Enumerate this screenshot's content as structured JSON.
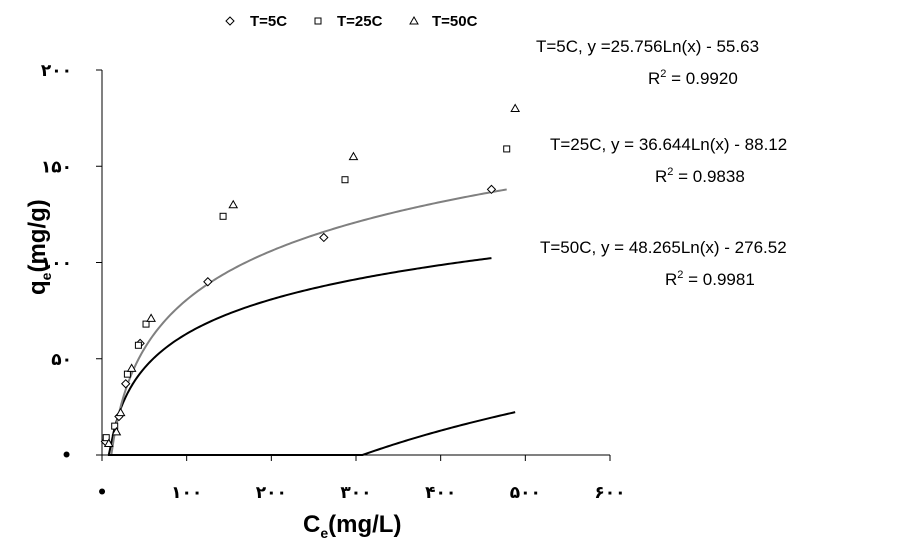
{
  "chart_data": {
    "type": "scatter",
    "xlabel_main": "C",
    "xlabel_sub": "e",
    "xlabel_rest": "(mg/L)",
    "ylabel_main": "q",
    "ylabel_sub": "e",
    "ylabel_rest": "(mg/g)",
    "xlim": [
      0,
      600
    ],
    "ylim": [
      0,
      200
    ],
    "xticks": [
      {
        "value": 0,
        "label": "•"
      },
      {
        "value": 100,
        "label": "۱۰۰"
      },
      {
        "value": 200,
        "label": "۲۰۰"
      },
      {
        "value": 300,
        "label": "۳۰۰"
      },
      {
        "value": 400,
        "label": "۴۰۰"
      },
      {
        "value": 500,
        "label": "۵۰۰"
      },
      {
        "value": 600,
        "label": "۶۰۰"
      }
    ],
    "yticks": [
      {
        "value": 0,
        "label": "•"
      },
      {
        "value": 50,
        "label": "۵۰"
      },
      {
        "value": 100,
        "label": "۱۰۰"
      },
      {
        "value": 150,
        "label": "۱۵۰"
      },
      {
        "value": 200,
        "label": "۲۰۰"
      }
    ],
    "legend_position": "top",
    "series": [
      {
        "name": "T=5C",
        "marker": "diamond",
        "line_color": "#000000",
        "fit": {
          "a": 25.756,
          "b": -55.63
        },
        "fit_x_range": [
          8,
          460
        ],
        "x": [
          4,
          20,
          28,
          45,
          125,
          262,
          460
        ],
        "y": [
          7,
          20,
          37,
          58,
          90,
          113,
          138
        ]
      },
      {
        "name": "T=25C",
        "marker": "square",
        "line_color": "#808080",
        "fit": {
          "a": 36.644,
          "b": -88.12
        },
        "fit_x_range": [
          11,
          478
        ],
        "x": [
          5,
          15,
          30,
          43,
          52,
          143,
          287,
          478
        ],
        "y": [
          9,
          15,
          42,
          57,
          68,
          124,
          143,
          159
        ]
      },
      {
        "name": "T=50C",
        "marker": "triangle",
        "line_color": "#000000",
        "fit": {
          "a": 48.265,
          "b": -276.52
        },
        "fit_x_range": [
          7,
          488
        ],
        "x": [
          8,
          17,
          22,
          35,
          58,
          155,
          297,
          488
        ],
        "y": [
          6,
          12,
          22,
          45,
          71,
          130,
          155,
          180
        ]
      }
    ],
    "equations": [
      {
        "line1": "T=5C, y =25.756Ln(x) - 55.63",
        "r2_prefix": "R",
        "r2_sup": "2",
        "r2_value": " = 0.9920"
      },
      {
        "line1": "T=25C, y = 36.644Ln(x) - 88.12",
        "r2_prefix": "R",
        "r2_sup": "2",
        "r2_value": " = 0.9838"
      },
      {
        "line1": "T=50C,  y = 48.265Ln(x) - 276.52",
        "r2_prefix": "R",
        "r2_sup": "2",
        "r2_value": " = 0.9981"
      }
    ]
  }
}
